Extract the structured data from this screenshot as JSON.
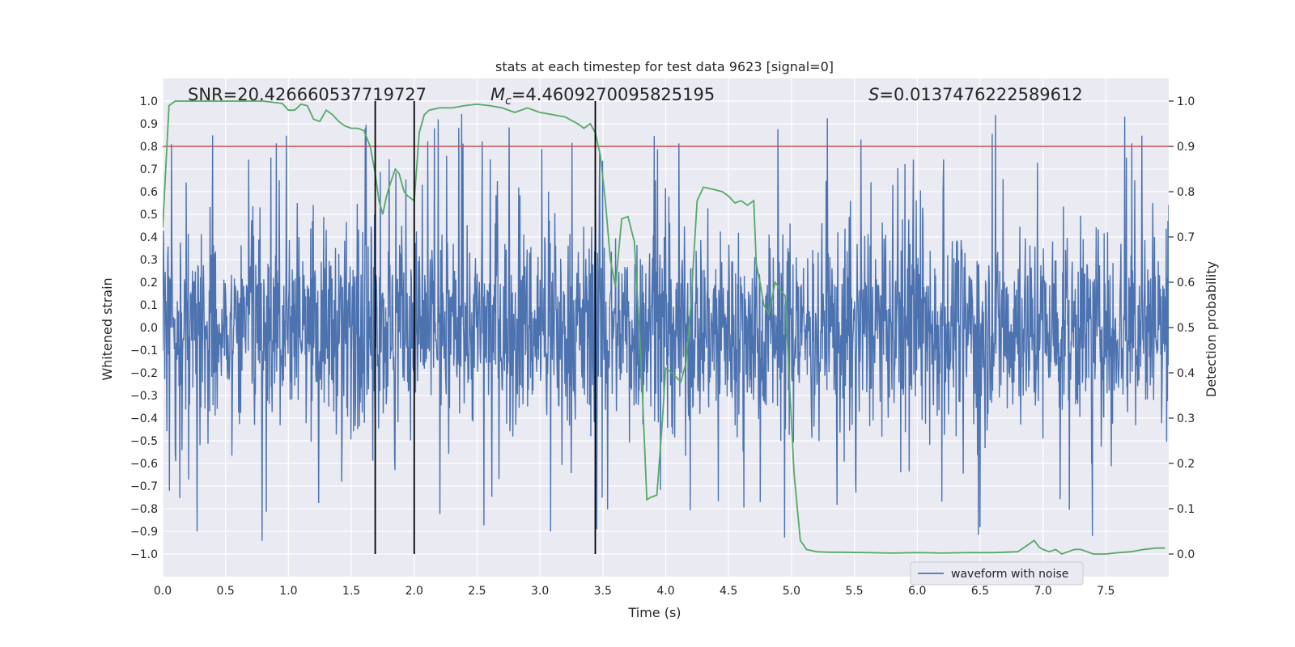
{
  "chart_data": {
    "type": "line",
    "title": "stats at each timestep for test data 9623 [signal=0]",
    "xlabel": "Time (s)",
    "ylabel": "Whitened strain",
    "y2label": "Detection probability",
    "xlim": [
      0.0,
      8.0
    ],
    "ylim": [
      -1.1,
      1.1
    ],
    "y2lim": [
      -0.05,
      1.05
    ],
    "x_ticks": [
      0.0,
      0.5,
      1.0,
      1.5,
      2.0,
      2.5,
      3.0,
      3.5,
      4.0,
      4.5,
      5.0,
      5.5,
      6.0,
      6.5,
      7.0,
      7.5
    ],
    "x_tick_labels": [
      "0.0",
      "0.5",
      "1.0",
      "1.5",
      "2.0",
      "2.5",
      "3.0",
      "3.5",
      "4.0",
      "4.5",
      "5.0",
      "5.5",
      "6.0",
      "6.5",
      "7.0",
      "7.5"
    ],
    "y_ticks": [
      1.0,
      0.9,
      0.8,
      0.7,
      0.6,
      0.5,
      0.4,
      0.3,
      0.2,
      0.1,
      0.0,
      -0.1,
      -0.2,
      -0.3,
      -0.4,
      -0.5,
      -0.6,
      -0.7,
      -0.8,
      -0.9,
      -1.0
    ],
    "y_tick_labels": [
      "1.0",
      "0.9",
      "0.8",
      "0.7",
      "0.6",
      "0.5",
      "0.4",
      "0.3",
      "0.2",
      "0.1",
      "0.0",
      "−0.1",
      "−0.2",
      "−0.3",
      "−0.4",
      "−0.5",
      "−0.6",
      "−0.7",
      "−0.8",
      "−0.9",
      "−1.0"
    ],
    "y2_ticks": [
      1.0,
      0.9,
      0.8,
      0.7,
      0.6,
      0.5,
      0.4,
      0.3,
      0.2,
      0.1,
      0.0
    ],
    "y2_tick_labels": [
      "1.0",
      "0.9",
      "0.8",
      "0.7",
      "0.6",
      "0.5",
      "0.4",
      "0.3",
      "0.2",
      "0.1",
      "0.0"
    ],
    "grid": true,
    "legend": {
      "position": "bottom-right",
      "entries": [
        "waveform with noise"
      ]
    },
    "annotations": {
      "snr": "SNR=20.426660537719727",
      "mc_symbol": "M",
      "mc_subscript": "c",
      "mc_value": "=4.4609270095825195",
      "s_symbol": "S",
      "s_value": "=0.0137476222589612"
    },
    "threshold_line": {
      "value": 0.9,
      "axis": "y2"
    },
    "vertical_lines": [
      1.69,
      2.0,
      3.44
    ],
    "waveform": {
      "name": "waveform with noise",
      "x_range": [
        0.0,
        8.0
      ],
      "bulk_amplitude": 0.38,
      "peak_amplitude": 0.95
    },
    "detection_probability": {
      "name": "Detection probability",
      "x": [
        0.0,
        0.05,
        0.1,
        0.2,
        0.4,
        0.6,
        0.8,
        0.95,
        1.0,
        1.05,
        1.1,
        1.15,
        1.2,
        1.25,
        1.3,
        1.35,
        1.4,
        1.45,
        1.5,
        1.55,
        1.6,
        1.65,
        1.69,
        1.72,
        1.75,
        1.78,
        1.8,
        1.85,
        1.88,
        1.92,
        1.95,
        2.0,
        2.04,
        2.08,
        2.12,
        2.2,
        2.3,
        2.4,
        2.5,
        2.6,
        2.7,
        2.8,
        2.9,
        3.0,
        3.1,
        3.2,
        3.3,
        3.35,
        3.4,
        3.44,
        3.48,
        3.52,
        3.56,
        3.6,
        3.65,
        3.7,
        3.75,
        3.8,
        3.85,
        3.88,
        3.93,
        3.97,
        4.0,
        4.05,
        4.12,
        4.16,
        4.2,
        4.25,
        4.3,
        4.38,
        4.45,
        4.5,
        4.55,
        4.6,
        4.65,
        4.7,
        4.72,
        4.75,
        4.78,
        4.82,
        4.87,
        4.92,
        4.95,
        4.98,
        5.02,
        5.07,
        5.12,
        5.2,
        5.3,
        5.4,
        5.6,
        5.8,
        6.0,
        6.2,
        6.4,
        6.6,
        6.8,
        6.88,
        6.93,
        6.97,
        7.0,
        7.05,
        7.1,
        7.15,
        7.2,
        7.25,
        7.3,
        7.35,
        7.4,
        7.5,
        7.6,
        7.7,
        7.8,
        7.9,
        7.97
      ],
      "y": [
        0.72,
        0.99,
        1.0,
        1.0,
        1.0,
        1.0,
        1.0,
        0.995,
        0.98,
        0.98,
        0.993,
        0.99,
        0.96,
        0.955,
        0.98,
        0.97,
        0.955,
        0.945,
        0.94,
        0.94,
        0.935,
        0.9,
        0.84,
        0.78,
        0.75,
        0.79,
        0.81,
        0.85,
        0.84,
        0.8,
        0.79,
        0.78,
        0.93,
        0.97,
        0.98,
        0.985,
        0.985,
        0.99,
        0.993,
        0.99,
        0.985,
        0.975,
        0.985,
        0.975,
        0.97,
        0.965,
        0.95,
        0.94,
        0.95,
        0.93,
        0.88,
        0.78,
        0.65,
        0.59,
        0.74,
        0.745,
        0.69,
        0.45,
        0.12,
        0.125,
        0.13,
        0.28,
        0.41,
        0.4,
        0.38,
        0.42,
        0.55,
        0.78,
        0.81,
        0.805,
        0.8,
        0.79,
        0.775,
        0.78,
        0.77,
        0.78,
        0.64,
        0.6,
        0.55,
        0.53,
        0.6,
        0.58,
        0.57,
        0.4,
        0.18,
        0.03,
        0.01,
        0.005,
        0.004,
        0.004,
        0.003,
        0.002,
        0.003,
        0.002,
        0.003,
        0.003,
        0.005,
        0.02,
        0.03,
        0.015,
        0.01,
        0.005,
        0.01,
        0.0,
        0.005,
        0.01,
        0.01,
        0.005,
        0.0,
        0.0,
        0.003,
        0.005,
        0.01,
        0.013,
        0.013
      ]
    },
    "colors": {
      "background": "#eaeaf2",
      "grid": "#ffffff",
      "waveform": "#4c72b0",
      "probability": "#55a868",
      "threshold": "#c44e52",
      "vlines": "#000000"
    }
  }
}
